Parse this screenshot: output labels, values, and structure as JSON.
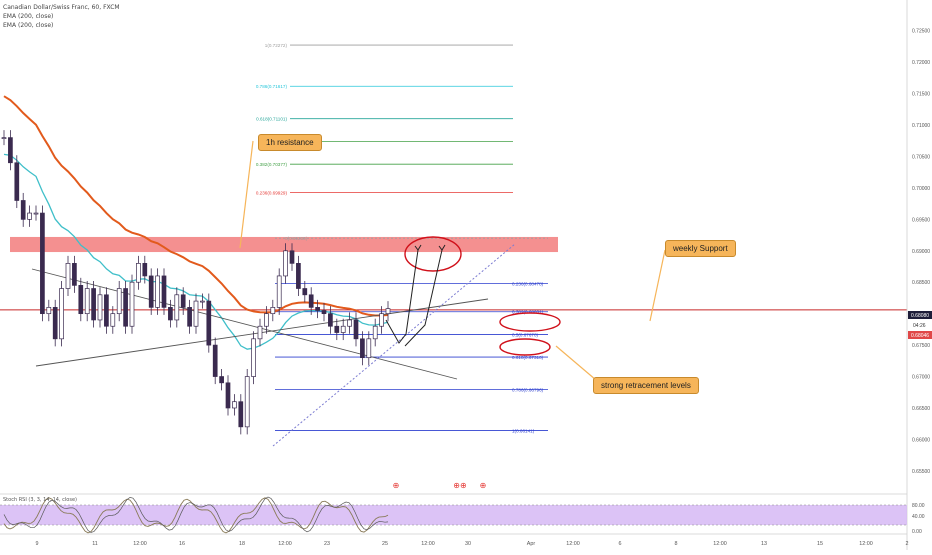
{
  "header": {
    "symbol": "Canadian Dollar/Swiss Franc, 60, FXCM",
    "ema1": "EMA (200, close)",
    "ema2": "EMA (200, close)"
  },
  "rsi_label": "Stoch RSI (3, 3, 14, 14, close)",
  "callouts": {
    "resistance": "1h resistance",
    "support": "weekly Support",
    "retracement": "strong retracement levels"
  },
  "event_markers": [
    "⊕",
    "⊕⊕",
    "⊕"
  ],
  "price_tags": {
    "last_a": "0.68080",
    "sub": "04:26",
    "last_b": "0.68046"
  },
  "colors": {
    "background": "#ffffff",
    "candle": "#3a2a4f",
    "ema_red": "#e25a1c",
    "ema_teal": "#3fbfc9",
    "resistance_zone": "#f27c7c",
    "support_line": "#c62828",
    "callout_fill": "#f6b55a",
    "rsi_band": "#d6b8f5",
    "rsi_line": "#8a7b58",
    "annot_red": "#d0101a"
  },
  "chart_data": {
    "type": "candlestick",
    "title": "Canadian Dollar/Swiss Franc, 60, FXCM",
    "xlabel": "",
    "ylabel": "",
    "ylim": [
      0.6545,
      0.7275
    ],
    "y_ticks": [
      "0.72500",
      "0.72000",
      "0.71500",
      "0.71000",
      "0.70500",
      "0.70000",
      "0.69500",
      "0.69000",
      "0.68500",
      "0.68000",
      "0.67500",
      "0.67000",
      "0.66500",
      "0.66000",
      "0.65500"
    ],
    "x_ticks": [
      "9",
      "11",
      "12:00",
      "16",
      "18",
      "12:00",
      "23",
      "25",
      "12:00",
      "30",
      "Apr",
      "12:00",
      "6",
      "8",
      "12:00",
      "13",
      "15",
      "12:00",
      "2"
    ],
    "close_series": [
      0.708,
      0.704,
      0.698,
      0.695,
      0.696,
      0.696,
      0.68,
      0.681,
      0.676,
      0.684,
      0.688,
      0.6845,
      0.68,
      0.684,
      0.679,
      0.683,
      0.678,
      0.68,
      0.684,
      0.678,
      0.685,
      0.688,
      0.686,
      0.681,
      0.686,
      0.681,
      0.679,
      0.683,
      0.681,
      0.678,
      0.682,
      0.682,
      0.675,
      0.67,
      0.669,
      0.665,
      0.666,
      0.662,
      0.67,
      0.676,
      0.678,
      0.68,
      0.681,
      0.686,
      0.69,
      0.688,
      0.684,
      0.683,
      0.681,
      0.6805,
      0.68,
      0.678,
      0.677,
      0.678,
      0.679,
      0.676,
      0.673,
      0.676,
      0.678,
      0.68,
      0.6808
    ],
    "fib_levels": [
      {
        "label": "0(0.69200)",
        "value": 0.692,
        "color": "#9e9e9e"
      },
      {
        "label": "0.236(0.68478)",
        "value": 0.68478,
        "color": "#2d3fcf"
      },
      {
        "label": "0.382(0.68031)",
        "value": 0.68031,
        "color": "#2d3fcf"
      },
      {
        "label": "0.5(0.67670)",
        "value": 0.6767,
        "color": "#2d3fcf"
      },
      {
        "label": "0.618(0.67310)",
        "value": 0.6731,
        "color": "#2d3fcf"
      },
      {
        "label": "0.786(0.66796)",
        "value": 0.66796,
        "color": "#2d3fcf"
      },
      {
        "label": "1(0.66141)",
        "value": 0.66141,
        "color": "#2d3fcf"
      },
      {
        "label": "0.236(0.69929)",
        "value": 0.69929,
        "color": "#e53935"
      },
      {
        "label": "0.382(0.70377)",
        "value": 0.70377,
        "color": "#43a047"
      },
      {
        "label": "",
        "value": 0.7074,
        "color": "#43a047"
      },
      {
        "label": "0.618(0.71101)",
        "value": 0.71101,
        "color": "#26a69a"
      },
      {
        "label": "0.786(0.71617)",
        "value": 0.71617,
        "color": "#26c6da"
      },
      {
        "label": "1(0.72272)",
        "value": 0.72272,
        "color": "#9e9e9e"
      }
    ],
    "rsi_levels": [
      "80.00",
      "40.00",
      "0.00"
    ],
    "grid": false,
    "legend": "top-left"
  }
}
